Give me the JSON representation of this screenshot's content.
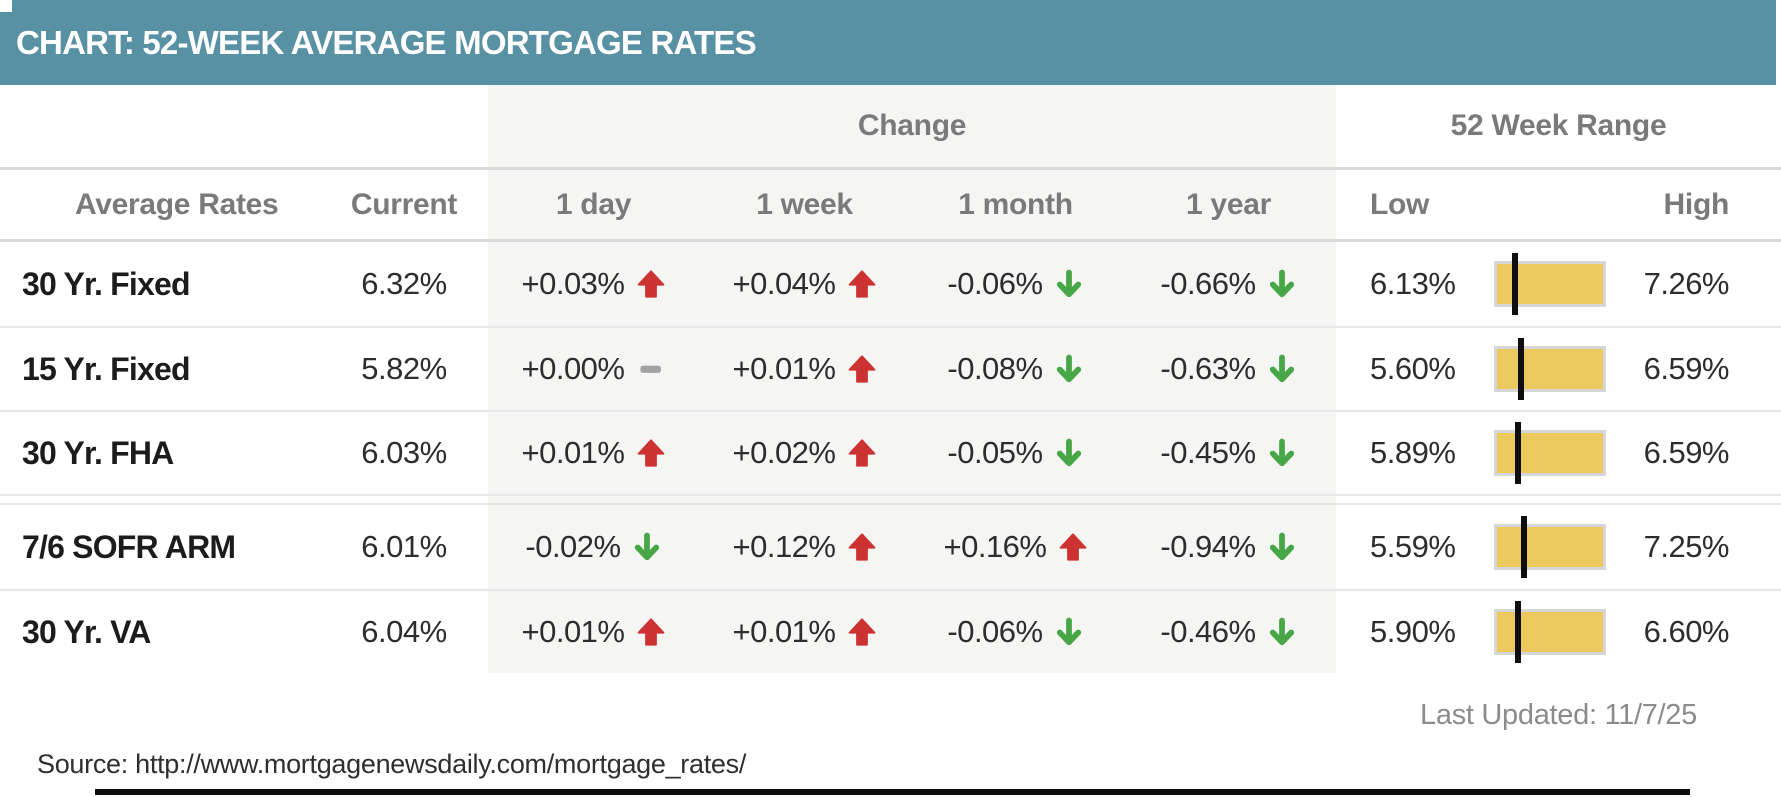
{
  "header": {
    "title": "CHART: 52-WEEK AVERAGE MORTGAGE RATES"
  },
  "table": {
    "group_headers": {
      "change": "Change",
      "range": "52 Week Range"
    },
    "columns": {
      "name": "Average Rates",
      "current": "Current",
      "day": "1 day",
      "week": "1 week",
      "month": "1 month",
      "year": "1 year",
      "low": "Low",
      "high": "High"
    },
    "rows": [
      {
        "name": "30 Yr. Fixed",
        "current": "6.32%",
        "day": {
          "text": "+0.03%",
          "dir": "up"
        },
        "week": {
          "text": "+0.04%",
          "dir": "up"
        },
        "month": {
          "text": "-0.06%",
          "dir": "down"
        },
        "year": {
          "text": "-0.66%",
          "dir": "down"
        },
        "low": "6.13%",
        "high": "7.26%"
      },
      {
        "name": "15 Yr. Fixed",
        "current": "5.82%",
        "day": {
          "text": "+0.00%",
          "dir": "flat"
        },
        "week": {
          "text": "+0.01%",
          "dir": "up"
        },
        "month": {
          "text": "-0.08%",
          "dir": "down"
        },
        "year": {
          "text": "-0.63%",
          "dir": "down"
        },
        "low": "5.60%",
        "high": "6.59%"
      },
      {
        "name": "30 Yr. FHA",
        "current": "6.03%",
        "day": {
          "text": "+0.01%",
          "dir": "up"
        },
        "week": {
          "text": "+0.02%",
          "dir": "up"
        },
        "month": {
          "text": "-0.05%",
          "dir": "down"
        },
        "year": {
          "text": "-0.45%",
          "dir": "down"
        },
        "low": "5.89%",
        "high": "6.59%"
      },
      {
        "name": "7/6 SOFR ARM",
        "current": "6.01%",
        "day": {
          "text": "-0.02%",
          "dir": "down"
        },
        "week": {
          "text": "+0.12%",
          "dir": "up"
        },
        "month": {
          "text": "+0.16%",
          "dir": "up"
        },
        "year": {
          "text": "-0.94%",
          "dir": "down"
        },
        "low": "5.59%",
        "high": "7.25%"
      },
      {
        "name": "30 Yr. VA",
        "current": "6.04%",
        "day": {
          "text": "+0.01%",
          "dir": "up"
        },
        "week": {
          "text": "+0.01%",
          "dir": "up"
        },
        "month": {
          "text": "-0.06%",
          "dir": "down"
        },
        "year": {
          "text": "-0.46%",
          "dir": "down"
        },
        "low": "5.90%",
        "high": "6.60%"
      }
    ]
  },
  "footer": {
    "last_updated": "Last Updated: 11/7/25",
    "source": "Source: http://www.mortgagenewsdaily.com/mortgage_rates/"
  },
  "colors": {
    "teal": "#5890A4",
    "red": "#CD3232",
    "green": "#47A747",
    "neutral": "#A3A3A3",
    "bar-fill": "#ECC95E",
    "bar-border": "#D6D6D6",
    "chg-bg": "#F5F5F4"
  },
  "chart_data": {
    "type": "table",
    "title": "CHART: 52-WEEK AVERAGE MORTGAGE RATES",
    "columns": [
      "Average Rates",
      "Current",
      "1 day",
      "1 week",
      "1 month",
      "1 year",
      "Low",
      "High"
    ],
    "column_groups": {
      "Change": [
        "1 day",
        "1 week",
        "1 month",
        "1 year"
      ],
      "52 Week Range": [
        "Low",
        "High"
      ]
    },
    "rows": [
      {
        "product": "30 Yr. Fixed",
        "current_pct": 6.32,
        "change_1day": 0.03,
        "change_1week": 0.04,
        "change_1month": -0.06,
        "change_1year": -0.66,
        "low_52wk": 6.13,
        "high_52wk": 7.26
      },
      {
        "product": "15 Yr. Fixed",
        "current_pct": 5.82,
        "change_1day": 0.0,
        "change_1week": 0.01,
        "change_1month": -0.08,
        "change_1year": -0.63,
        "low_52wk": 5.6,
        "high_52wk": 6.59
      },
      {
        "product": "30 Yr. FHA",
        "current_pct": 6.03,
        "change_1day": 0.01,
        "change_1week": 0.02,
        "change_1month": -0.05,
        "change_1year": -0.45,
        "low_52wk": 5.89,
        "high_52wk": 6.59
      },
      {
        "product": "7/6 SOFR ARM",
        "current_pct": 6.01,
        "change_1day": -0.02,
        "change_1week": 0.12,
        "change_1month": 0.16,
        "change_1year": -0.94,
        "low_52wk": 5.59,
        "high_52wk": 7.25
      },
      {
        "product": "30 Yr. VA",
        "current_pct": 6.04,
        "change_1day": 0.01,
        "change_1week": 0.01,
        "change_1month": -0.06,
        "change_1year": -0.46,
        "low_52wk": 5.9,
        "high_52wk": 6.6
      }
    ],
    "range_bar": "yellow bar spans 52-week low..high; black vertical marker = current rate position",
    "last_updated": "11/7/25",
    "source": "http://www.mortgagenewsdaily.com/mortgage_rates/"
  }
}
